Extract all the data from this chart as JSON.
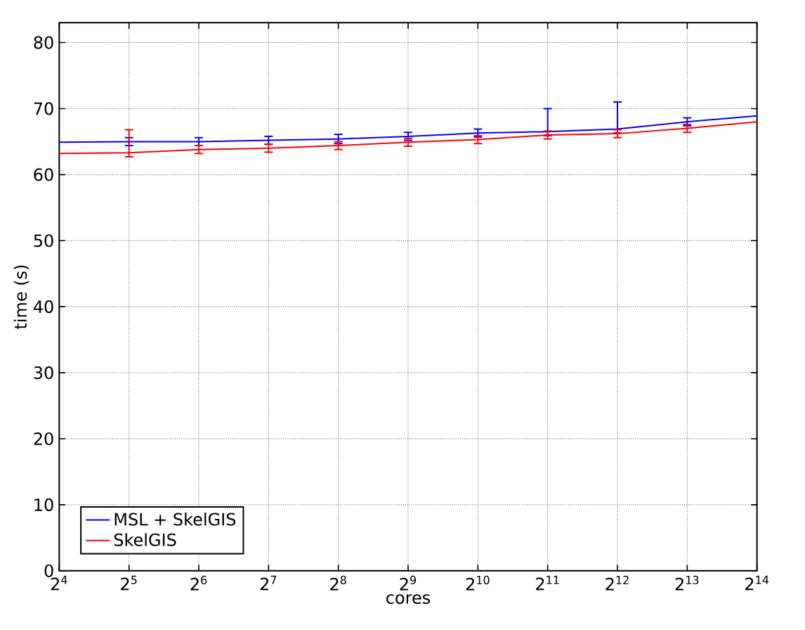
{
  "chart_data": {
    "type": "line",
    "xlabel": "cores",
    "ylabel": "time (s)",
    "log": "x",
    "grid": true,
    "legend": "bottom left",
    "marker": "none",
    "line_style": "solid",
    "x": [
      16,
      32,
      64,
      128,
      256,
      512,
      1024,
      2048,
      4096,
      8192,
      16384
    ],
    "xlim": [
      16,
      16384
    ],
    "ylim": [
      0,
      83
    ],
    "xticks": [
      {
        "value": 16,
        "label": "2$^{4}$"
      },
      {
        "value": 32,
        "label": "2$^{5}$"
      },
      {
        "value": 64,
        "label": "2$^{6}$"
      },
      {
        "value": 128,
        "label": "2$^{7}$"
      },
      {
        "value": 256,
        "label": "2$^{8}$"
      },
      {
        "value": 512,
        "label": "2$^{9}$"
      },
      {
        "value": 1024,
        "label": "2$^{10}$"
      },
      {
        "value": 2048,
        "label": "2$^{11}$"
      },
      {
        "value": 4096,
        "label": "2$^{12}$"
      },
      {
        "value": 8192,
        "label": "2$^{13}$"
      },
      {
        "value": 16384,
        "label": "2$^{14}$"
      }
    ],
    "yticks": [
      0,
      10,
      20,
      30,
      40,
      50,
      60,
      70,
      80
    ],
    "series": [
      {
        "name": "MSL + SkelGIS",
        "color": "#0000ff",
        "values": [
          64.9,
          65.0,
          65.0,
          65.2,
          65.4,
          65.8,
          66.3,
          66.5,
          66.9,
          68.0,
          68.9
        ],
        "errors": [
          null,
          0.6,
          0.6,
          0.6,
          0.7,
          0.6,
          0.6,
          [
            65.9,
            70.0
          ],
          [
            66.3,
            71.0
          ],
          0.6,
          null
        ]
      },
      {
        "name": "SkelGIS",
        "color": "#ff0000",
        "values": [
          63.2,
          63.3,
          63.8,
          64.0,
          64.4,
          64.9,
          65.3,
          66.0,
          66.2,
          67.0,
          68.0
        ],
        "errors": [
          null,
          [
            62.7,
            66.8
          ],
          0.6,
          0.6,
          0.6,
          0.6,
          0.6,
          0.6,
          0.6,
          0.6,
          null
        ]
      }
    ]
  }
}
